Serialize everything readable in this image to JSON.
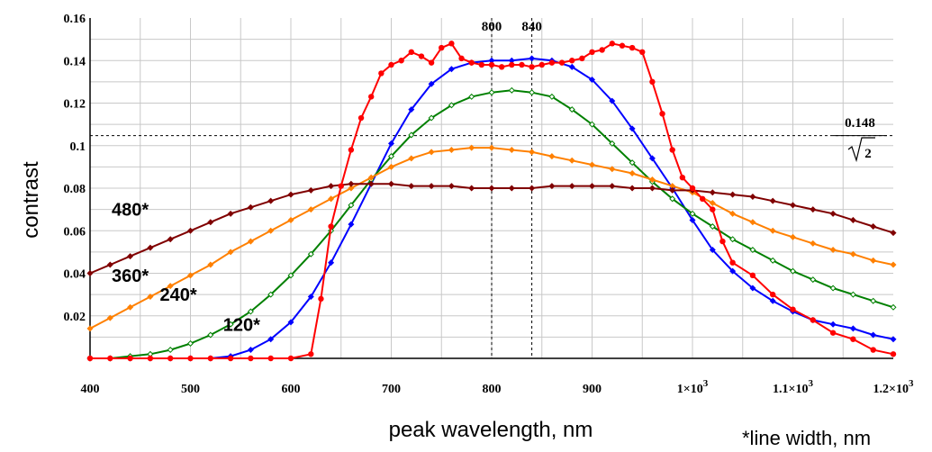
{
  "chart_data": {
    "type": "line",
    "xlabel": "peak wavelength, nm",
    "ylabel": "contrast",
    "note": "*line width, nm",
    "xlim": [
      400,
      1200
    ],
    "ylim": [
      0,
      0.16
    ],
    "grid": true,
    "x_ticks": [
      {
        "v": 400,
        "t": "400"
      },
      {
        "v": 500,
        "t": "500"
      },
      {
        "v": 600,
        "t": "600"
      },
      {
        "v": 700,
        "t": "700"
      },
      {
        "v": 800,
        "t": "800"
      },
      {
        "v": 900,
        "t": "900"
      },
      {
        "v": 1000,
        "t": "1×10",
        "e": "3"
      },
      {
        "v": 1100,
        "t": "1.1×10",
        "e": "3"
      },
      {
        "v": 1200,
        "t": "1.2×10",
        "e": "3"
      }
    ],
    "y_ticks": [
      {
        "v": 0.02,
        "t": "0.02"
      },
      {
        "v": 0.04,
        "t": "0.04"
      },
      {
        "v": 0.06,
        "t": "0.06"
      },
      {
        "v": 0.08,
        "t": "0.08"
      },
      {
        "v": 0.1,
        "t": "0.1"
      },
      {
        "v": 0.12,
        "t": "0.12"
      },
      {
        "v": 0.14,
        "t": "0.14"
      },
      {
        "v": 0.16,
        "t": "0.16"
      }
    ],
    "reference_lines": [
      {
        "orientation": "vertical",
        "x": 800,
        "label": "800"
      },
      {
        "orientation": "vertical",
        "x": 840,
        "label": "840"
      },
      {
        "orientation": "horizontal",
        "y": 0.1047,
        "label_num": "0.148",
        "label_den": "2"
      }
    ],
    "series": [
      {
        "name": "120*",
        "color": "#0000ff",
        "marker": "diamond",
        "x": [
          400,
          420,
          440,
          460,
          480,
          500,
          520,
          540,
          560,
          580,
          600,
          620,
          640,
          660,
          680,
          700,
          720,
          740,
          760,
          780,
          800,
          820,
          840,
          860,
          880,
          900,
          920,
          940,
          960,
          980,
          1000,
          1020,
          1040,
          1060,
          1080,
          1100,
          1120,
          1140,
          1160,
          1180,
          1200
        ],
        "y": [
          0,
          0,
          0,
          0,
          0,
          0,
          0,
          0.001,
          0.004,
          0.009,
          0.017,
          0.029,
          0.045,
          0.063,
          0.082,
          0.101,
          0.117,
          0.129,
          0.136,
          0.139,
          0.14,
          0.14,
          0.141,
          0.14,
          0.137,
          0.131,
          0.121,
          0.108,
          0.094,
          0.08,
          0.065,
          0.051,
          0.041,
          0.033,
          0.027,
          0.022,
          0.018,
          0.016,
          0.014,
          0.011,
          0.009
        ]
      },
      {
        "name": "240*",
        "color": "#008000",
        "marker": "diamond",
        "x": [
          400,
          420,
          440,
          460,
          480,
          500,
          520,
          540,
          560,
          580,
          600,
          620,
          640,
          660,
          680,
          700,
          720,
          740,
          760,
          780,
          800,
          820,
          840,
          860,
          880,
          900,
          920,
          940,
          960,
          980,
          1000,
          1020,
          1040,
          1060,
          1080,
          1100,
          1120,
          1140,
          1160,
          1180,
          1200
        ],
        "y": [
          0,
          0,
          0.001,
          0.002,
          0.004,
          0.007,
          0.011,
          0.016,
          0.022,
          0.03,
          0.039,
          0.049,
          0.06,
          0.072,
          0.084,
          0.095,
          0.105,
          0.113,
          0.119,
          0.123,
          0.125,
          0.126,
          0.125,
          0.123,
          0.117,
          0.11,
          0.101,
          0.092,
          0.083,
          0.075,
          0.068,
          0.062,
          0.056,
          0.051,
          0.046,
          0.041,
          0.037,
          0.033,
          0.03,
          0.027,
          0.024
        ]
      },
      {
        "name": "360*",
        "color": "#ff8000",
        "marker": "diamond",
        "x": [
          400,
          420,
          440,
          460,
          480,
          500,
          520,
          540,
          560,
          580,
          600,
          620,
          640,
          660,
          680,
          700,
          720,
          740,
          760,
          780,
          800,
          820,
          840,
          860,
          880,
          900,
          920,
          940,
          960,
          980,
          1000,
          1020,
          1040,
          1060,
          1080,
          1100,
          1120,
          1140,
          1160,
          1180,
          1200
        ],
        "y": [
          0.014,
          0.019,
          0.024,
          0.029,
          0.034,
          0.039,
          0.044,
          0.05,
          0.055,
          0.06,
          0.065,
          0.07,
          0.075,
          0.08,
          0.085,
          0.09,
          0.094,
          0.097,
          0.098,
          0.099,
          0.099,
          0.098,
          0.097,
          0.095,
          0.093,
          0.091,
          0.089,
          0.087,
          0.084,
          0.081,
          0.078,
          0.073,
          0.068,
          0.064,
          0.06,
          0.057,
          0.054,
          0.051,
          0.049,
          0.046,
          0.044
        ]
      },
      {
        "name": "480*",
        "color": "#800000",
        "marker": "diamond",
        "x": [
          400,
          420,
          440,
          460,
          480,
          500,
          520,
          540,
          560,
          580,
          600,
          620,
          640,
          660,
          680,
          700,
          720,
          740,
          760,
          780,
          800,
          820,
          840,
          860,
          880,
          900,
          920,
          940,
          960,
          980,
          1000,
          1020,
          1040,
          1060,
          1080,
          1100,
          1120,
          1140,
          1160,
          1180,
          1200
        ],
        "y": [
          0.04,
          0.044,
          0.048,
          0.052,
          0.056,
          0.06,
          0.064,
          0.068,
          0.071,
          0.074,
          0.077,
          0.079,
          0.081,
          0.082,
          0.082,
          0.082,
          0.081,
          0.081,
          0.081,
          0.08,
          0.08,
          0.08,
          0.08,
          0.081,
          0.081,
          0.081,
          0.081,
          0.08,
          0.08,
          0.079,
          0.079,
          0.078,
          0.077,
          0.076,
          0.074,
          0.072,
          0.07,
          0.068,
          0.065,
          0.062,
          0.059
        ]
      },
      {
        "name": "",
        "color": "#ff0000",
        "marker": "circle",
        "x": [
          400,
          420,
          440,
          460,
          480,
          500,
          520,
          540,
          560,
          580,
          600,
          620,
          630,
          640,
          650,
          660,
          670,
          680,
          690,
          700,
          710,
          720,
          730,
          740,
          750,
          760,
          770,
          780,
          790,
          800,
          810,
          820,
          830,
          840,
          850,
          860,
          870,
          880,
          890,
          900,
          910,
          920,
          930,
          940,
          950,
          960,
          970,
          980,
          990,
          1000,
          1010,
          1020,
          1030,
          1040,
          1060,
          1080,
          1100,
          1120,
          1140,
          1160,
          1180,
          1200
        ],
        "y": [
          0,
          0,
          0,
          0,
          0,
          0,
          0,
          0,
          0,
          0,
          0,
          0.002,
          0.028,
          0.062,
          0.081,
          0.098,
          0.113,
          0.123,
          0.134,
          0.138,
          0.14,
          0.144,
          0.142,
          0.139,
          0.146,
          0.148,
          0.141,
          0.139,
          0.138,
          0.138,
          0.137,
          0.138,
          0.138,
          0.137,
          0.138,
          0.139,
          0.139,
          0.14,
          0.141,
          0.144,
          0.145,
          0.148,
          0.147,
          0.146,
          0.144,
          0.13,
          0.115,
          0.098,
          0.085,
          0.08,
          0.075,
          0.07,
          0.055,
          0.045,
          0.039,
          0.03,
          0.023,
          0.018,
          0.012,
          0.009,
          0.004,
          0.002
        ]
      }
    ],
    "series_labels": [
      {
        "text": "480*",
        "x": 440,
        "y": 0.067
      },
      {
        "text": "360*",
        "x": 440,
        "y": 0.036
      },
      {
        "text": "240*",
        "x": 488,
        "y": 0.027
      },
      {
        "text": "120*",
        "x": 551,
        "y": 0.013
      }
    ]
  }
}
